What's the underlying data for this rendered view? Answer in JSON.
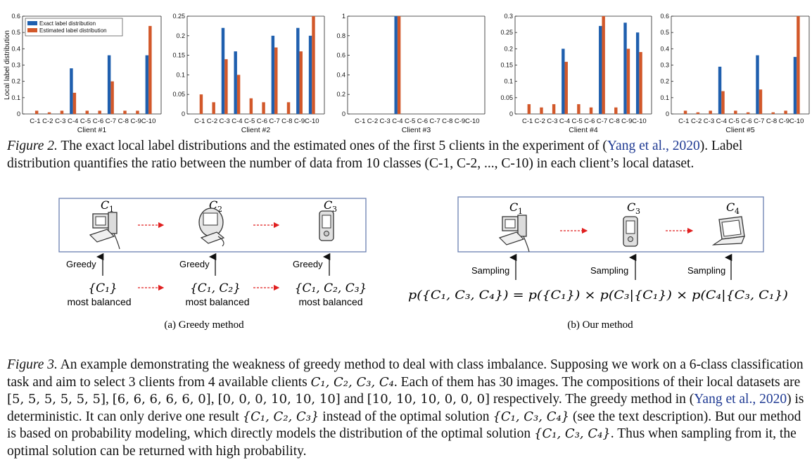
{
  "fig2": {
    "caption_lead": "Figure 2.",
    "caption_body_1": " The exact local label distributions and the estimated ones of the first 5 clients in the experiment of (",
    "caption_cite": "Yang et al., 2020",
    "caption_body_2": "). Label distribution quantifies the ratio between the number of data from 10 classes (C-1, C-2, ..., C-10) in each client’s local dataset."
  },
  "chart_data": [
    {
      "type": "bar",
      "title": "",
      "xlabel": "Client #1",
      "ylabel": "Local label distribution",
      "categories": [
        "C-1",
        "C-2",
        "C-3",
        "C-4",
        "C-5",
        "C-6",
        "C-7",
        "C-8",
        "C-9",
        "C-10"
      ],
      "ylim": [
        0,
        0.6
      ],
      "yticks": [
        "0",
        "0.1",
        "0.2",
        "0.3",
        "0.4",
        "0.5",
        "0.6"
      ],
      "legend": "top-left",
      "series": [
        {
          "name": "Exact label distribution",
          "color": "#1f5fae",
          "values": [
            0,
            0,
            0,
            0.28,
            0,
            0,
            0.36,
            0,
            0,
            0.36
          ]
        },
        {
          "name": "Estimated label distribution",
          "color": "#d2582a",
          "values": [
            0.02,
            0.01,
            0.02,
            0.13,
            0.02,
            0.02,
            0.2,
            0.02,
            0.02,
            0.54
          ]
        }
      ]
    },
    {
      "type": "bar",
      "title": "",
      "xlabel": "Client #2",
      "ylabel": "",
      "categories": [
        "C-1",
        "C-2",
        "C-3",
        "C-4",
        "C-5",
        "C-6",
        "C-7",
        "C-8",
        "C-9",
        "C-10"
      ],
      "ylim": [
        0,
        0.25
      ],
      "yticks": [
        "0",
        "0.05",
        "0.1",
        "0.15",
        "0.2",
        "0.25"
      ],
      "series": [
        {
          "color": "#1f5fae",
          "values": [
            0,
            0,
            0.22,
            0.16,
            0,
            0,
            0.2,
            0,
            0.22,
            0.2
          ]
        },
        {
          "color": "#d2582a",
          "values": [
            0.05,
            0.03,
            0.14,
            0.1,
            0.04,
            0.03,
            0.17,
            0.03,
            0.16,
            0.25
          ]
        }
      ]
    },
    {
      "type": "bar",
      "title": "",
      "xlabel": "Client #3",
      "ylabel": "",
      "categories": [
        "C-1",
        "C-2",
        "C-3",
        "C-4",
        "C-5",
        "C-6",
        "C-7",
        "C-8",
        "C-9",
        "C-10"
      ],
      "ylim": [
        0,
        1
      ],
      "yticks": [
        "0",
        "0.2",
        "0.4",
        "0.6",
        "0.8",
        "1"
      ],
      "series": [
        {
          "color": "#1f5fae",
          "values": [
            0,
            0,
            0,
            1,
            0,
            0,
            0,
            0,
            0,
            0
          ]
        },
        {
          "color": "#d2582a",
          "values": [
            0,
            0,
            0,
            1,
            0,
            0,
            0,
            0,
            0,
            0
          ]
        }
      ]
    },
    {
      "type": "bar",
      "title": "",
      "xlabel": "Client #4",
      "ylabel": "",
      "categories": [
        "C-1",
        "C-2",
        "C-3",
        "C-4",
        "C-5",
        "C-6",
        "C-7",
        "C-8",
        "C-9",
        "C-10"
      ],
      "ylim": [
        0,
        0.3
      ],
      "yticks": [
        "0",
        "0.05",
        "0.1",
        "0.15",
        "0.2",
        "0.25",
        "0.3"
      ],
      "series": [
        {
          "color": "#1f5fae",
          "values": [
            0,
            0,
            0,
            0.2,
            0,
            0,
            0.27,
            0,
            0.28,
            0.25
          ]
        },
        {
          "color": "#d2582a",
          "values": [
            0.03,
            0.02,
            0.03,
            0.16,
            0.03,
            0.02,
            0.3,
            0.02,
            0.2,
            0.19
          ]
        }
      ]
    },
    {
      "type": "bar",
      "title": "",
      "xlabel": "Client #5",
      "ylabel": "",
      "categories": [
        "C-1",
        "C-2",
        "C-3",
        "C-4",
        "C-5",
        "C-6",
        "C-7",
        "C-8",
        "C-9",
        "C-10"
      ],
      "ylim": [
        0,
        0.6
      ],
      "yticks": [
        "0",
        "0.1",
        "0.2",
        "0.3",
        "0.4",
        "0.5",
        "0.6"
      ],
      "series": [
        {
          "color": "#1f5fae",
          "values": [
            0,
            0,
            0,
            0.29,
            0,
            0,
            0.36,
            0,
            0,
            0.35
          ]
        },
        {
          "color": "#d2582a",
          "values": [
            0.02,
            0.01,
            0.02,
            0.14,
            0.02,
            0.01,
            0.15,
            0.01,
            0.02,
            0.6
          ]
        }
      ]
    }
  ],
  "fig3": {
    "greedy": {
      "nodes": [
        {
          "sym": "C",
          "sub": "1"
        },
        {
          "sym": "C",
          "sub": "2"
        },
        {
          "sym": "C",
          "sub": "3"
        }
      ],
      "label": "Greedy",
      "sets": [
        "{C₁}",
        "{C₁, C₂}",
        "{C₁, C₂, C₃}"
      ],
      "balanced": "most balanced",
      "subcaption": "(a) Greedy method"
    },
    "ours": {
      "nodes": [
        {
          "sym": "C",
          "sub": "1"
        },
        {
          "sym": "C",
          "sub": "3"
        },
        {
          "sym": "C",
          "sub": "4"
        }
      ],
      "label": "Sampling",
      "formula": "p({C₁, C₃, C₄}) = p({C₁}) × p(C₃|{C₁}) × p(C₄|{C₃, C₁})",
      "subcaption": "(b) Our method"
    },
    "caption_lead": "Figure 3.",
    "caption_line1": " An example demonstrating the weakness of greedy method to deal with class imbalance. Supposing we work on a 6-class classification task and aim to select 3 clients from 4 available clients ",
    "caption_clients": "C₁, C₂, C₃, C₄",
    "caption_line2": ". Each of them has 30 images. The compositions of their local datasets are ",
    "comp1": "[5, 5, 5, 5, 5, 5]",
    "comp2": "[6, 6, 6, 6, 6, 0]",
    "comp3": "[0, 0, 0, 10, 10, 10]",
    "comp_and": " and ",
    "comp4": "[10, 10, 10, 0, 0, 0]",
    "caption_line3": " respectively. The greedy method in (",
    "caption_cite": "Yang et al., 2020",
    "caption_line4": ") is deterministic. It can only derive one result ",
    "set_greedy": "{C₁, C₂, C₃}",
    "caption_line5": " instead of the optimal solution ",
    "set_opt": "{C₁, C₃, C₄}",
    "caption_line6": " (see the text description). But our method is based on probability modeling, which directly models the distribution of the optimal solution ",
    "caption_line7": ". Thus when sampling from it, the optimal solution can be returned with high probability."
  }
}
